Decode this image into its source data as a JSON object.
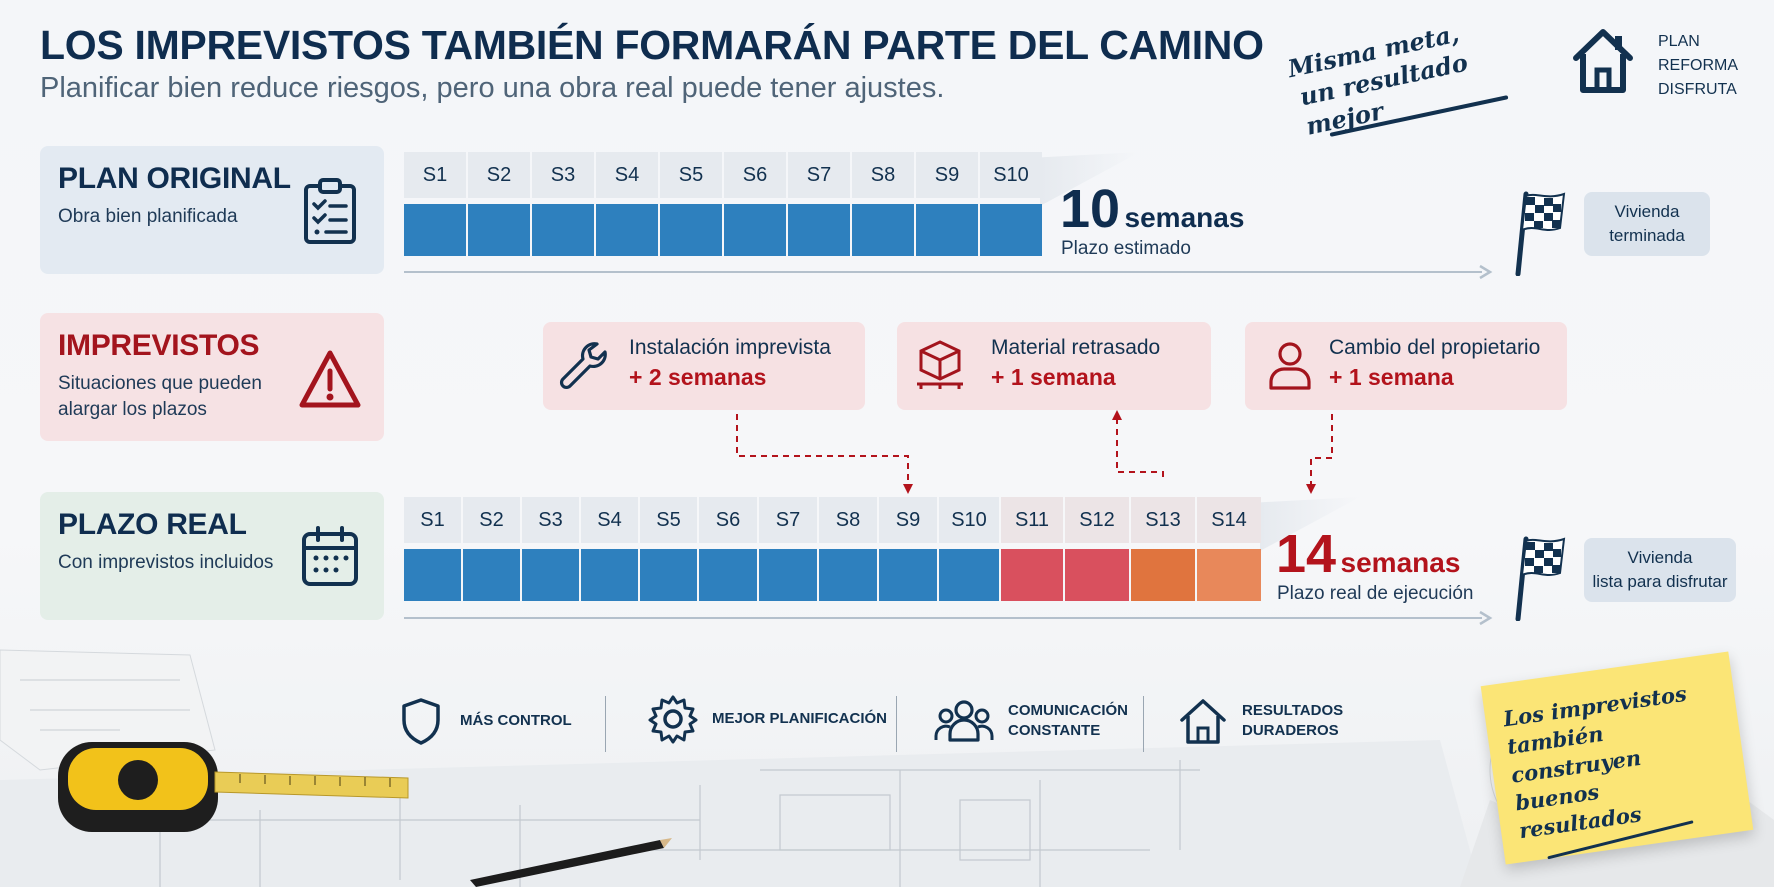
{
  "header": {
    "title": "LOS IMPREVISTOS TAMBIÉN FORMARÁN PARTE DEL CAMINO",
    "subtitle": "Planificar bien reduce riesgos, pero una obra real puede tener ajustes.",
    "slogan_line1": "Misma meta,",
    "slogan_line2": "un resultado mejor",
    "brand": [
      "PLAN",
      "REFORMA",
      "DISFRUTA"
    ]
  },
  "plan_original": {
    "title": "PLAN ORIGINAL",
    "subtitle": "Obra bien planificada",
    "weeks": [
      "S1",
      "S2",
      "S3",
      "S4",
      "S5",
      "S6",
      "S7",
      "S8",
      "S9",
      "S10"
    ],
    "total_number": "10",
    "total_unit": "semanas",
    "caption": "Plazo estimado",
    "finish_line1": "Vivienda",
    "finish_line2": "terminada"
  },
  "imprevistos": {
    "title": "IMPREVISTOS",
    "subtitle_line1": "Situaciones que pueden",
    "subtitle_line2": "alargar los plazos",
    "events": [
      {
        "icon": "wrench-icon",
        "title": "Instalación imprevista",
        "delay": "+ 2 semanas"
      },
      {
        "icon": "box-icon",
        "title": "Material retrasado",
        "delay": "+ 1 semana"
      },
      {
        "icon": "person-icon",
        "title": "Cambio del propietario",
        "delay": "+ 1 semana"
      }
    ]
  },
  "plazo_real": {
    "title": "PLAZO REAL",
    "subtitle": "Con imprevistos incluidos",
    "weeks": [
      "S1",
      "S2",
      "S3",
      "S4",
      "S5",
      "S6",
      "S7",
      "S8",
      "S9",
      "S10",
      "S11",
      "S12",
      "S13",
      "S14"
    ],
    "total_number": "14",
    "total_unit": "semanas",
    "caption": "Plazo real de ejecución",
    "finish_line1": "Vivienda",
    "finish_line2": "lista para disfrutar"
  },
  "colors": {
    "navy": "#0f2d4f",
    "blue_week": "#2e80be",
    "red_week": "#d9505e",
    "orange_week": "#e0743e",
    "light_orange_week": "#e8885a",
    "alert_red": "#b3131c"
  },
  "features": [
    {
      "icon": "shield-icon",
      "line1": "MÁS CONTROL",
      "line2": ""
    },
    {
      "icon": "gear-icon",
      "line1": "MEJOR PLANIFICACIÓN",
      "line2": ""
    },
    {
      "icon": "people-icon",
      "line1": "COMUNICACIÓN",
      "line2": "CONSTANTE"
    },
    {
      "icon": "house-icon",
      "line1": "RESULTADOS",
      "line2": "DURADEROS"
    }
  ],
  "note": {
    "line1": "Los imprevistos",
    "line2": "también construyen",
    "line3": "buenos resultados"
  }
}
